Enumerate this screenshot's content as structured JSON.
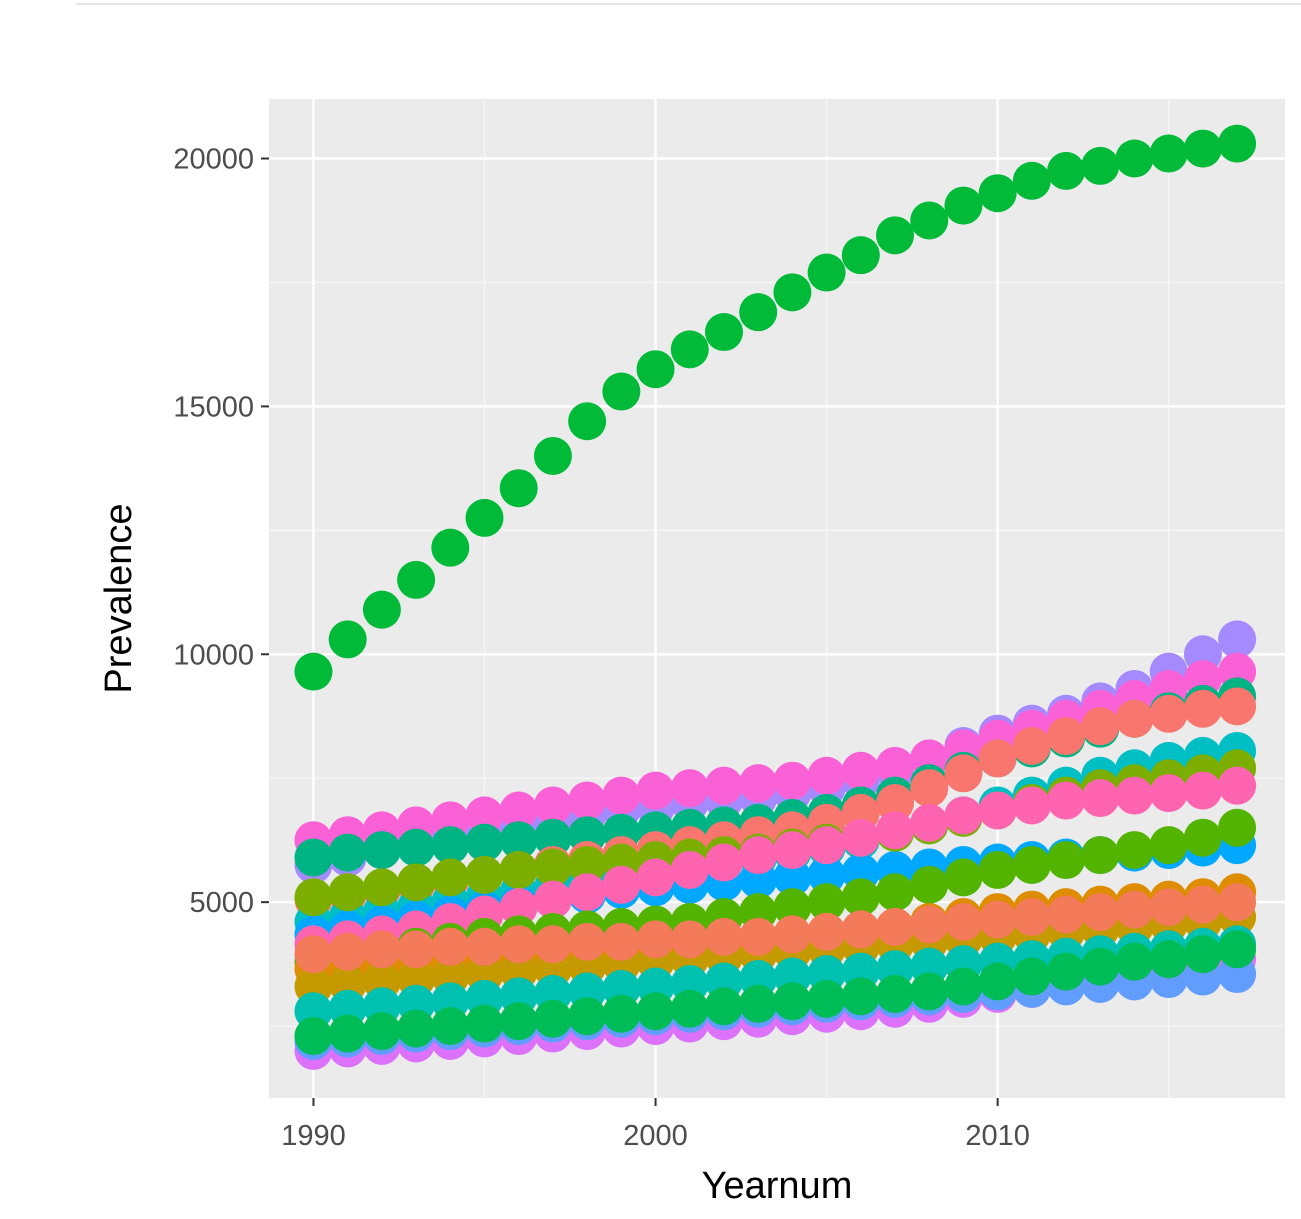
{
  "chart_data": {
    "type": "scatter",
    "title": "",
    "xlabel": "Yearnum",
    "ylabel": "Prevalence",
    "xlim": [
      1988.7,
      2018.4
    ],
    "ylim": [
      1050,
      21200
    ],
    "x_ticks": [
      1990,
      2000,
      2010
    ],
    "y_ticks": [
      5000,
      10000,
      15000,
      20000
    ],
    "grid": true,
    "legend": "none",
    "x": [
      1990,
      1991,
      1992,
      1993,
      1994,
      1995,
      1996,
      1997,
      1998,
      1999,
      2000,
      2001,
      2002,
      2003,
      2004,
      2005,
      2006,
      2007,
      2008,
      2009,
      2010,
      2011,
      2012,
      2013,
      2014,
      2015,
      2016,
      2017
    ],
    "series": [
      {
        "color": "#00BA38",
        "values": [
          9650,
          10300,
          10900,
          11500,
          12150,
          12750,
          13350,
          14000,
          14700,
          15300,
          15750,
          16150,
          16500,
          16900,
          17300,
          17700,
          18050,
          18450,
          18750,
          19050,
          19300,
          19550,
          19750,
          19850,
          20000,
          20100,
          20200,
          20300
        ]
      },
      {
        "color": "#A58AFF",
        "values": [
          5750,
          5900,
          6050,
          6200,
          6350,
          6450,
          6550,
          6650,
          6750,
          6850,
          6900,
          7000,
          7050,
          7100,
          7200,
          7300,
          7450,
          7650,
          7900,
          8150,
          8400,
          8600,
          8800,
          9050,
          9300,
          9650,
          10000,
          10300
        ]
      },
      {
        "color": "#FB61D7",
        "values": [
          6250,
          6350,
          6450,
          6550,
          6650,
          6750,
          6850,
          6950,
          7050,
          7150,
          7250,
          7300,
          7350,
          7400,
          7450,
          7550,
          7650,
          7750,
          7900,
          8100,
          8300,
          8500,
          8700,
          8900,
          9100,
          9300,
          9500,
          9650
        ]
      },
      {
        "color": "#00B383",
        "values": [
          5900,
          6000,
          6050,
          6100,
          6150,
          6200,
          6250,
          6300,
          6350,
          6400,
          6450,
          6500,
          6550,
          6600,
          6700,
          6800,
          6950,
          7150,
          7400,
          7650,
          7900,
          8100,
          8300,
          8500,
          8700,
          8850,
          9000,
          9150
        ]
      },
      {
        "color": "#F8766D",
        "values": [
          5050,
          5150,
          5250,
          5350,
          5450,
          5550,
          5650,
          5750,
          5850,
          5950,
          6050,
          6150,
          6250,
          6350,
          6450,
          6600,
          6800,
          7000,
          7300,
          7600,
          7900,
          8150,
          8350,
          8550,
          8700,
          8800,
          8900,
          8950
        ]
      },
      {
        "color": "#00BFC4",
        "values": [
          4600,
          4700,
          4800,
          4900,
          5000,
          5100,
          5200,
          5300,
          5400,
          5500,
          5600,
          5700,
          5800,
          5900,
          6000,
          6100,
          6250,
          6400,
          6550,
          6750,
          6950,
          7150,
          7350,
          7550,
          7700,
          7850,
          7950,
          8050
        ]
      },
      {
        "color": "#00A9FF",
        "values": [
          4350,
          4450,
          4550,
          4650,
          4750,
          4850,
          4950,
          5050,
          5150,
          5250,
          5300,
          5350,
          5400,
          5450,
          5500,
          5550,
          5600,
          5650,
          5700,
          5750,
          5800,
          5850,
          5900,
          5950,
          6000,
          6050,
          6100,
          6150
        ]
      },
      {
        "color": "#7CAE00",
        "values": [
          5100,
          5200,
          5300,
          5400,
          5500,
          5550,
          5650,
          5700,
          5750,
          5800,
          5850,
          5900,
          5950,
          6000,
          6100,
          6200,
          6300,
          6400,
          6550,
          6700,
          6850,
          7000,
          7150,
          7300,
          7400,
          7500,
          7600,
          7700
        ]
      },
      {
        "color": "#FF64B0",
        "values": [
          4150,
          4250,
          4350,
          4450,
          4600,
          4750,
          4900,
          5050,
          5200,
          5350,
          5500,
          5650,
          5800,
          5950,
          6050,
          6150,
          6300,
          6450,
          6600,
          6750,
          6850,
          6950,
          7050,
          7100,
          7150,
          7200,
          7250,
          7350
        ]
      },
      {
        "color": "#53B400",
        "values": [
          3800,
          3900,
          4000,
          4100,
          4200,
          4300,
          4350,
          4400,
          4450,
          4500,
          4550,
          4600,
          4700,
          4800,
          4900,
          5000,
          5100,
          5200,
          5350,
          5500,
          5650,
          5750,
          5850,
          5950,
          6050,
          6150,
          6300,
          6500
        ]
      },
      {
        "color": "#DE8C00",
        "values": [
          3650,
          3700,
          3750,
          3800,
          3850,
          3900,
          3950,
          4000,
          4050,
          4100,
          4150,
          4200,
          4250,
          4300,
          4350,
          4400,
          4450,
          4500,
          4600,
          4700,
          4800,
          4850,
          4900,
          4950,
          5000,
          5050,
          5100,
          5200
        ]
      },
      {
        "color": "#C49A00",
        "values": [
          3300,
          3350,
          3400,
          3450,
          3500,
          3550,
          3600,
          3650,
          3700,
          3750,
          3800,
          3850,
          3900,
          3950,
          4000,
          4050,
          4100,
          4150,
          4200,
          4250,
          4300,
          4350,
          4400,
          4450,
          4500,
          4550,
          4600,
          4700
        ]
      },
      {
        "color": "#F37B59",
        "values": [
          3950,
          4000,
          4050,
          4050,
          4100,
          4100,
          4150,
          4150,
          4200,
          4200,
          4250,
          4250,
          4300,
          4300,
          4350,
          4400,
          4450,
          4500,
          4550,
          4600,
          4650,
          4700,
          4750,
          4800,
          4850,
          4900,
          4950,
          5000
        ]
      },
      {
        "color": "#00C0AF",
        "values": [
          2800,
          2850,
          2900,
          2950,
          3000,
          3050,
          3100,
          3150,
          3200,
          3250,
          3300,
          3350,
          3400,
          3450,
          3500,
          3550,
          3600,
          3650,
          3700,
          3750,
          3800,
          3850,
          3900,
          3950,
          4000,
          4050,
          4100,
          4150
        ]
      },
      {
        "color": "#DC71FA",
        "values": [
          2000,
          2050,
          2100,
          2150,
          2200,
          2250,
          2300,
          2350,
          2400,
          2450,
          2500,
          2550,
          2600,
          2650,
          2700,
          2750,
          2800,
          2850,
          2950,
          3050,
          3150,
          3250,
          3350,
          3450,
          3550,
          3650,
          3750,
          3850
        ]
      },
      {
        "color": "#619CFF",
        "values": [
          2200,
          2250,
          2300,
          2350,
          2400,
          2450,
          2500,
          2550,
          2600,
          2650,
          2700,
          2750,
          2800,
          2850,
          2900,
          2950,
          3000,
          3050,
          3100,
          3150,
          3200,
          3250,
          3300,
          3350,
          3400,
          3450,
          3500,
          3550
        ]
      },
      {
        "color": "#00BC56",
        "values": [
          2300,
          2350,
          2400,
          2450,
          2500,
          2550,
          2600,
          2650,
          2700,
          2750,
          2800,
          2850,
          2900,
          2950,
          3000,
          3050,
          3100,
          3150,
          3200,
          3300,
          3400,
          3500,
          3600,
          3700,
          3800,
          3850,
          3950,
          4050
        ]
      }
    ]
  }
}
